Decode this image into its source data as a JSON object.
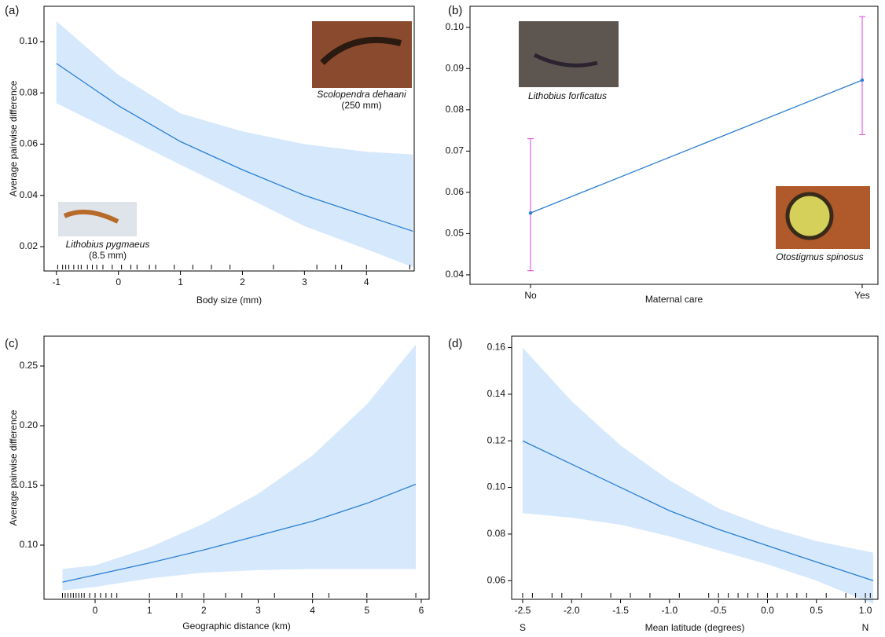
{
  "chart_data": [
    {
      "type": "line",
      "panel": "(a)",
      "xlabel": "Body size (mm)",
      "ylabel": "Average pairwise difference",
      "x": [
        -1,
        0,
        1,
        2,
        3,
        4,
        4.75
      ],
      "values": [
        0.0915,
        0.075,
        0.061,
        0.05,
        0.04,
        0.032,
        0.026
      ],
      "upper": [
        0.108,
        0.087,
        0.072,
        0.065,
        0.06,
        0.057,
        0.056
      ],
      "lower": [
        0.076,
        0.064,
        0.052,
        0.04,
        0.028,
        0.019,
        0.012
      ],
      "xlim": [
        -1.2,
        4.77
      ],
      "ylim": [
        0.0105,
        0.1138
      ],
      "xticks": [
        -1,
        0,
        1,
        2,
        3,
        4
      ],
      "yticks": [
        0.02,
        0.04,
        0.06,
        0.08,
        {
          "value": 0.1,
          "label": "0.10"
        }
      ],
      "rug": [
        -0.98,
        -0.9,
        -0.85,
        -0.8,
        -0.72,
        -0.65,
        -0.6,
        -0.5,
        -0.42,
        -0.35,
        -0.25,
        -0.1,
        0.05,
        0.2,
        0.3,
        0.5,
        0.6,
        0.9,
        1.2,
        1.5,
        1.8,
        2.5,
        3.2,
        3.5,
        3.6,
        4.0,
        4.7
      ],
      "color": "#2a7fd4",
      "band_color": "#d6e8fb",
      "annotations": [
        "Scolopendra dehaani",
        "(250 mm)",
        "Lithobius pygmaeus",
        "(8.5 mm)"
      ]
    },
    {
      "type": "errorbar",
      "panel": "(b)",
      "xlabel": "Maternal care",
      "categories": [
        "No",
        "Yes"
      ],
      "values": [
        0.055,
        0.0872
      ],
      "lower": [
        0.041,
        0.074
      ],
      "upper": [
        0.073,
        0.1026
      ],
      "ylim": [
        0.0377,
        0.1051
      ],
      "yticks": [
        0.04,
        0.05,
        0.06,
        0.07,
        0.08,
        0.09,
        {
          "value": 0.1,
          "label": "0.10"
        }
      ],
      "color": "#2a7fd4",
      "error_color": "#e040e0",
      "annotations": [
        "Lithobius forficatus",
        "Otostigmus spinosus"
      ]
    },
    {
      "type": "line",
      "panel": "(c)",
      "xlabel": "Geographic distance (km)",
      "ylabel": "Average pairwise difference",
      "x": [
        -0.6,
        0,
        1,
        2,
        3,
        4,
        5,
        5.9
      ],
      "values": [
        0.069,
        0.075,
        0.085,
        0.096,
        0.108,
        0.12,
        0.135,
        0.151
      ],
      "upper": [
        0.08,
        0.083,
        0.098,
        0.118,
        0.143,
        0.175,
        0.218,
        0.268
      ],
      "lower": [
        0.062,
        0.065,
        0.072,
        0.077,
        0.079,
        0.08,
        0.08,
        0.08
      ],
      "xlim": [
        -0.94,
        6.145
      ],
      "ylim": [
        0.0546,
        0.275
      ],
      "xticks": [
        0,
        1,
        2,
        3,
        4,
        5,
        6
      ],
      "yticks": [
        {
          "value": 0.1,
          "label": "0.10"
        },
        0.15,
        {
          "value": 0.2,
          "label": "0.20"
        },
        0.25
      ],
      "rug": [
        -0.6,
        -0.55,
        -0.5,
        -0.45,
        -0.4,
        -0.35,
        -0.3,
        -0.25,
        -0.2,
        -0.1,
        0,
        0.1,
        0.2,
        0.3,
        0.4,
        1.0,
        1.5,
        1.6,
        2.0,
        2.4,
        2.7,
        3.3,
        4.0,
        4.3,
        5.0,
        5.9
      ],
      "color": "#2a7fd4",
      "band_color": "#d6e8fb"
    },
    {
      "type": "line",
      "panel": "(d)",
      "xlabel": "Mean latitude (degrees)",
      "x": [
        -2.5,
        -2,
        -1.5,
        -1,
        -0.5,
        0,
        0.5,
        1.08
      ],
      "values": [
        0.12,
        0.11,
        0.1,
        0.09,
        0.082,
        0.075,
        0.068,
        0.06
      ],
      "upper": [
        0.16,
        0.137,
        0.118,
        0.103,
        0.091,
        0.083,
        0.077,
        0.072
      ],
      "lower": [
        0.089,
        0.087,
        0.084,
        0.079,
        0.073,
        0.067,
        0.06,
        0.05
      ],
      "xlim": [
        -2.612,
        1.128
      ],
      "ylim": [
        0.052,
        0.1649
      ],
      "xticks": [
        -2.5,
        {
          "value": -2,
          "label": "-2.0"
        },
        -1.5,
        {
          "value": -1,
          "label": "-1.0"
        },
        -0.5,
        {
          "value": 0,
          "label": "0.0"
        },
        0.5,
        {
          "value": 1,
          "label": "1.0"
        }
      ],
      "yticks": [
        0.06,
        0.08,
        {
          "value": 0.1,
          "label": "0.10"
        },
        0.12,
        0.14,
        0.16
      ],
      "rug": [
        -2.5,
        -2.4,
        -2.2,
        -2.1,
        -1.9,
        -1.6,
        -1.4,
        -1.2,
        -0.9,
        -0.6,
        -0.5,
        -0.4,
        -0.3,
        -0.2,
        -0.1,
        0,
        0.1,
        0.2,
        0.3,
        0.4,
        0.6,
        0.8,
        0.9,
        1.0,
        1.05
      ],
      "color": "#2a7fd4",
      "band_color": "#d6e8fb",
      "annotations": [
        "S",
        "N"
      ]
    }
  ]
}
